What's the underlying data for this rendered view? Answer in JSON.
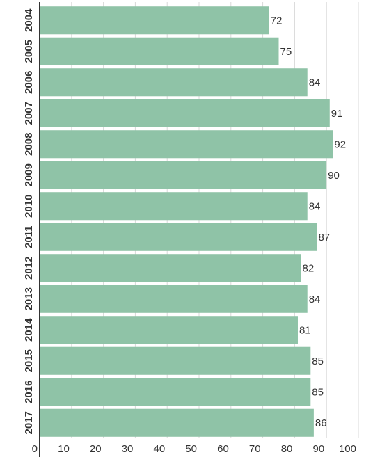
{
  "chart_data": {
    "type": "bar",
    "orientation": "horizontal",
    "categories": [
      "2004",
      "2005",
      "2006",
      "2007",
      "2008",
      "2009",
      "2010",
      "2011",
      "2012",
      "2013",
      "2014",
      "2015",
      "2016",
      "2017"
    ],
    "values": [
      72,
      75,
      84,
      91,
      92,
      90,
      84,
      87,
      82,
      84,
      81,
      85,
      85,
      86
    ],
    "x_ticks": [
      "0",
      "10",
      "20",
      "30",
      "40",
      "50",
      "60",
      "70",
      "80",
      "90",
      "100"
    ],
    "xlim": [
      0,
      100
    ],
    "title": "",
    "xlabel": "",
    "ylabel": "",
    "grid": "vertical",
    "legend": "none",
    "bar_color": "#8fc3a7",
    "data_labels": true
  }
}
